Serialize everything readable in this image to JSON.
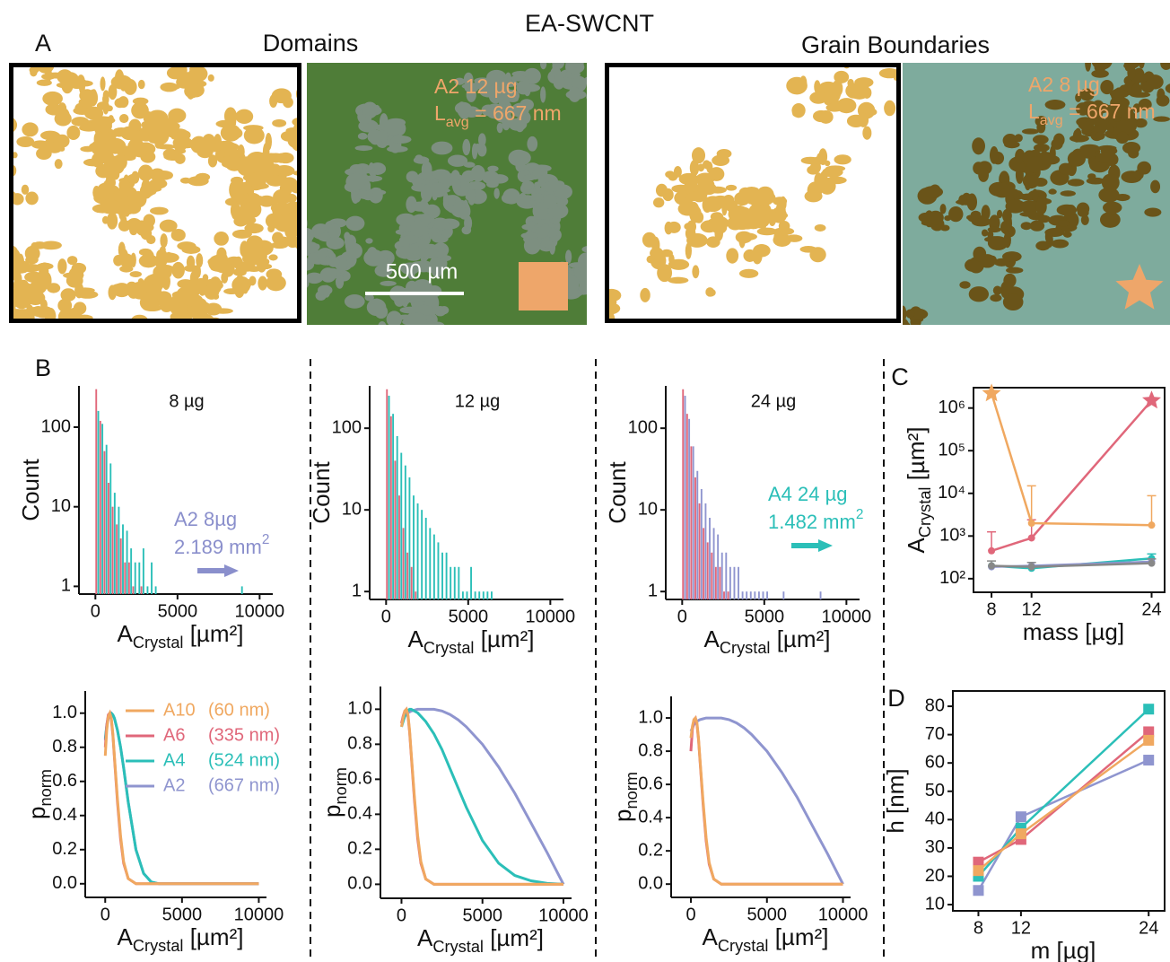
{
  "figure": {
    "title": "EA-SWCNT",
    "panel_labels": [
      "A",
      "B",
      "C",
      "D"
    ]
  },
  "panel_a": {
    "domains_title": "Domains",
    "boundaries_title": "Grain Boundaries",
    "domains_label": {
      "sample": "A2 12 µg",
      "length": [
        "L",
        "avg",
        " = 667 nm"
      ]
    },
    "boundaries_label": {
      "sample": "A2 8 µg",
      "length": [
        "L",
        "avg",
        " = 667 nm"
      ]
    },
    "scale_bar": "500 µm"
  },
  "chart_data": [
    {
      "type": "histogram",
      "title": "8 µg",
      "x_label": [
        "A",
        "Crystal",
        " [µm²]"
      ],
      "y_label": "Count",
      "log_y": true,
      "xlim": [
        -1000,
        10800
      ],
      "xticks": [
        0,
        5000,
        10000
      ],
      "ylim": [
        0.8,
        330
      ],
      "yticks": [
        1,
        10,
        100
      ],
      "bins": [
        0,
        250,
        500,
        750,
        1000,
        1250,
        1500,
        1750,
        2000,
        2250,
        2500,
        2750,
        3000,
        3250,
        3500,
        3750,
        4000,
        4250,
        4500,
        4750,
        5000,
        5250,
        5500,
        5750,
        6000,
        6250,
        6500,
        6750,
        7000,
        7250,
        7500,
        7750,
        8000,
        8250,
        8500,
        8750,
        9000
      ],
      "series": [
        {
          "color": "#e0677a",
          "values": [
            300,
            120,
            50,
            20,
            10,
            6,
            4,
            2,
            2,
            1,
            0,
            1,
            0,
            0,
            0,
            0,
            0,
            0,
            0,
            0,
            0,
            0,
            0,
            0,
            0,
            0,
            0,
            0,
            0,
            0,
            0,
            0,
            0,
            0,
            0,
            0
          ]
        },
        {
          "color": "#2bbfb8",
          "values": [
            160,
            110,
            60,
            35,
            15,
            10,
            6,
            5,
            3,
            2,
            2,
            3,
            1,
            2,
            1,
            0,
            0,
            0,
            0,
            0,
            0,
            0,
            0,
            0,
            0,
            0,
            0,
            0,
            0,
            0,
            0,
            0,
            0,
            0,
            0,
            1
          ]
        }
      ],
      "annotations": [
        {
          "lines": [
            [
              "A2 8µg"
            ],
            [
              "2.189 mm",
              "2"
            ]
          ],
          "color": "#8a8fcc",
          "arrow": true
        }
      ]
    },
    {
      "type": "histogram",
      "title": "12 µg",
      "x_label": [
        "A",
        "Crystal",
        " [µm²]"
      ],
      "y_label": "Count",
      "log_y": true,
      "xlim": [
        -1000,
        10800
      ],
      "xticks": [
        0,
        5000,
        10000
      ],
      "ylim": [
        0.8,
        330
      ],
      "yticks": [
        1,
        10,
        100
      ],
      "bins": [
        0,
        250,
        500,
        750,
        1000,
        1250,
        1500,
        1750,
        2000,
        2250,
        2500,
        2750,
        3000,
        3250,
        3500,
        3750,
        4000,
        4250,
        4500,
        4750,
        5000,
        5250,
        5500,
        5750,
        6000,
        6250,
        6500,
        6750,
        7000,
        7250,
        7500,
        7750,
        8000,
        8250,
        8500,
        8750,
        9000
      ],
      "series": [
        {
          "color": "#e0677a",
          "values": [
            300,
            140,
            40,
            15,
            6,
            3,
            2,
            1,
            0,
            0,
            0,
            0,
            0,
            0,
            0,
            0,
            0,
            0,
            0,
            0,
            0,
            0,
            0,
            0,
            0,
            0,
            0,
            0,
            0,
            0,
            0,
            0,
            0,
            0,
            0,
            0
          ]
        },
        {
          "color": "#2bbfb8",
          "values": [
            250,
            150,
            80,
            50,
            35,
            25,
            15,
            12,
            10,
            8,
            6,
            5,
            4,
            3,
            3,
            2,
            2,
            2,
            1,
            1,
            2,
            1,
            1,
            1,
            1,
            1,
            0,
            0,
            0,
            0,
            0,
            0,
            0,
            0,
            0,
            0
          ]
        }
      ]
    },
    {
      "type": "histogram",
      "title": "24 µg",
      "x_label": [
        "A",
        "Crystal",
        " [µm²]"
      ],
      "y_label": "Count",
      "log_y": true,
      "xlim": [
        -1000,
        10800
      ],
      "xticks": [
        0,
        5000,
        10000
      ],
      "ylim": [
        0.8,
        330
      ],
      "yticks": [
        1,
        10,
        100
      ],
      "bins": [
        0,
        250,
        500,
        750,
        1000,
        1250,
        1500,
        1750,
        2000,
        2250,
        2500,
        2750,
        3000,
        3250,
        3500,
        3750,
        4000,
        4250,
        4500,
        4750,
        5000,
        5250,
        5500,
        5750,
        6000,
        6250,
        6500,
        6750,
        7000,
        7250,
        7500,
        7750,
        8000,
        8250,
        8500,
        8750,
        9000
      ],
      "series": [
        {
          "color": "#e0677a",
          "values": [
            300,
            150,
            60,
            25,
            12,
            6,
            4,
            3,
            2,
            2,
            1,
            1,
            0,
            0,
            0,
            0,
            0,
            0,
            0,
            0,
            0,
            0,
            0,
            0,
            0,
            0,
            0,
            0,
            0,
            0,
            0,
            0,
            0,
            0,
            0,
            0
          ]
        },
        {
          "color": "#8f95cf",
          "values": [
            250,
            130,
            60,
            30,
            18,
            12,
            8,
            6,
            5,
            3,
            3,
            2,
            2,
            2,
            1,
            1,
            1,
            1,
            1,
            1,
            1,
            0,
            0,
            0,
            1,
            0,
            0,
            0,
            0,
            0,
            0,
            0,
            0,
            1,
            0,
            0
          ]
        }
      ],
      "annotations": [
        {
          "lines": [
            [
              "A4 24 µg"
            ],
            [
              "1.482 mm",
              "2"
            ]
          ],
          "color": "#2bbfb8",
          "arrow": true
        }
      ]
    },
    {
      "type": "line",
      "x_label": [
        "A",
        "Crystal",
        " [µm²]"
      ],
      "y_label": [
        "p",
        "norm"
      ],
      "xlim": [
        -1300,
        10500
      ],
      "xticks": [
        0,
        5000,
        10000
      ],
      "ylim": [
        -0.08,
        1.13
      ],
      "yticks": [
        {
          "value": 0,
          "label": "0.0"
        },
        0.2,
        0.4,
        0.6,
        0.8,
        {
          "value": 1,
          "label": "1.0"
        }
      ],
      "x": [
        0,
        100,
        200,
        300,
        400,
        500,
        600,
        800,
        1000,
        1200,
        1500,
        2000,
        2500,
        3000,
        3500,
        4000,
        5000,
        6000,
        7000,
        8000,
        9000,
        10000
      ],
      "legend": "upper right",
      "series": [
        {
          "name": "A10",
          "size": "(60 nm)",
          "color": "#f0a860",
          "values": [
            0.75,
            0.9,
            0.98,
            1.0,
            0.97,
            0.88,
            0.75,
            0.5,
            0.28,
            0.13,
            0.03,
            0,
            0,
            0,
            0,
            0,
            0,
            0,
            0,
            0,
            0,
            0
          ]
        },
        {
          "name": "A6",
          "size": "(335 nm)",
          "color": "#e0677a",
          "values": [
            0.8,
            0.93,
            0.99,
            1.0,
            0.96,
            0.87,
            0.74,
            0.48,
            0.26,
            0.12,
            0.03,
            0,
            0,
            0,
            0,
            0,
            0,
            0,
            0,
            0,
            0,
            0
          ]
        },
        {
          "name": "A4",
          "size": "(524 nm)",
          "color": "#2bbfb8",
          "values": [
            0.85,
            0.93,
            0.98,
            1.0,
            1.0,
            0.99,
            0.97,
            0.9,
            0.8,
            0.68,
            0.48,
            0.2,
            0.06,
            0.01,
            0,
            0,
            0,
            0,
            0,
            0,
            0,
            0
          ]
        },
        {
          "name": "A2",
          "size": "(667 nm)",
          "color": "#8f95cf",
          "values": [
            0.84,
            0.92,
            0.97,
            0.99,
            1.0,
            0.99,
            0.97,
            0.9,
            0.8,
            0.68,
            0.48,
            0.2,
            0.06,
            0.01,
            0,
            0,
            0,
            0,
            0,
            0,
            0,
            0
          ]
        }
      ]
    },
    {
      "type": "line",
      "x_label": [
        "A",
        "Crystal",
        " [µm²]"
      ],
      "y_label": [
        "p",
        "norm"
      ],
      "xlim": [
        -1300,
        10500
      ],
      "xticks": [
        0,
        5000,
        10000
      ],
      "ylim": [
        -0.08,
        1.13
      ],
      "yticks": [
        {
          "value": 0,
          "label": "0.0"
        },
        0.2,
        0.4,
        0.6,
        0.8,
        {
          "value": 1,
          "label": "1.0"
        }
      ],
      "x": [
        0,
        100,
        200,
        300,
        400,
        500,
        600,
        800,
        1000,
        1200,
        1500,
        2000,
        2500,
        3000,
        3500,
        4000,
        5000,
        6000,
        7000,
        8000,
        9000,
        10000
      ],
      "series": [
        {
          "color": "#f0a860",
          "values": [
            0.9,
            0.95,
            0.99,
            1.0,
            0.97,
            0.88,
            0.75,
            0.5,
            0.28,
            0.13,
            0.03,
            0,
            0,
            0,
            0,
            0,
            0,
            0,
            0,
            0,
            0,
            0
          ]
        },
        {
          "color": "#e0677a",
          "values": [
            0.92,
            0.96,
            0.99,
            1.0,
            0.96,
            0.87,
            0.74,
            0.48,
            0.26,
            0.12,
            0.03,
            0,
            0,
            0,
            0,
            0,
            0,
            0,
            0,
            0,
            0,
            0
          ]
        },
        {
          "color": "#2bbfb8",
          "values": [
            0.9,
            0.93,
            0.96,
            0.98,
            0.99,
            1.0,
            1.0,
            0.99,
            0.98,
            0.96,
            0.93,
            0.86,
            0.77,
            0.66,
            0.55,
            0.44,
            0.25,
            0.12,
            0.05,
            0.02,
            0.005,
            0
          ]
        },
        {
          "color": "#8f95cf",
          "values": [
            0.92,
            0.94,
            0.96,
            0.97,
            0.98,
            0.985,
            0.99,
            0.995,
            1.0,
            1.0,
            1.0,
            1.0,
            0.99,
            0.97,
            0.94,
            0.9,
            0.8,
            0.67,
            0.52,
            0.35,
            0.18,
            0
          ]
        }
      ]
    },
    {
      "type": "line",
      "x_label": [
        "A",
        "Crystal",
        " [µm²]"
      ],
      "y_label": [
        "p",
        "norm"
      ],
      "xlim": [
        -1300,
        10500
      ],
      "xticks": [
        0,
        5000,
        10000
      ],
      "ylim": [
        -0.08,
        1.13
      ],
      "yticks": [
        {
          "value": 0,
          "label": "0.0"
        },
        0.2,
        0.4,
        0.6,
        0.8,
        {
          "value": 1,
          "label": "1.0"
        }
      ],
      "x": [
        0,
        100,
        200,
        300,
        400,
        500,
        600,
        800,
        1000,
        1200,
        1500,
        2000,
        2500,
        3000,
        3500,
        4000,
        5000,
        6000,
        7000,
        8000,
        9000,
        10000
      ],
      "series": [
        {
          "color": "#f0a860",
          "values": [
            0.88,
            0.95,
            0.99,
            1.0,
            0.97,
            0.88,
            0.75,
            0.5,
            0.28,
            0.13,
            0.03,
            0,
            0,
            0,
            0,
            0,
            0,
            0,
            0,
            0,
            0,
            0
          ]
        },
        {
          "color": "#e0677a",
          "values": [
            0.8,
            0.93,
            0.99,
            1.0,
            0.96,
            0.87,
            0.74,
            0.48,
            0.26,
            0.12,
            0.03,
            0,
            0,
            0,
            0,
            0,
            0,
            0,
            0,
            0,
            0,
            0
          ]
        },
        {
          "color": "#8f95cf",
          "values": [
            0.92,
            0.94,
            0.96,
            0.97,
            0.98,
            0.985,
            0.99,
            0.995,
            1.0,
            1.0,
            1.0,
            1.0,
            0.99,
            0.97,
            0.94,
            0.9,
            0.8,
            0.67,
            0.52,
            0.35,
            0.18,
            0
          ]
        }
      ]
    },
    {
      "type": "line",
      "log_y": true,
      "frame": true,
      "x_label": "mass [µg]",
      "y_label": [
        "A",
        "Crystal",
        " [µm²]"
      ],
      "xlim": [
        6.2,
        25.3
      ],
      "xticks": [
        8,
        12,
        24
      ],
      "ylim": [
        48,
        3000000
      ],
      "yticks": [
        {
          "value": 100,
          "label": "10²"
        },
        {
          "value": 1000,
          "label": "10³"
        },
        {
          "value": 10000,
          "label": "10⁴"
        },
        {
          "value": 100000,
          "label": "10⁵"
        },
        {
          "value": 1000000,
          "label": "10⁶"
        }
      ],
      "x": [
        8,
        12,
        24
      ],
      "series": [
        {
          "color": "#f0a860",
          "values": [
            2200000,
            2000,
            1800
          ],
          "errors": [
            null,
            13000,
            7000
          ],
          "markers": [
            "star",
            "circle",
            "circle"
          ]
        },
        {
          "color": "#e0677a",
          "values": [
            450,
            900,
            1500000
          ],
          "errors": [
            800,
            1500,
            null
          ],
          "markers": [
            "circle",
            "circle",
            "star"
          ]
        },
        {
          "color": "#888888",
          "values": [
            200,
            190,
            230
          ],
          "errors": [
            60,
            50,
            60
          ]
        },
        {
          "color": "#8f95cf",
          "values": [
            190,
            200,
            250
          ]
        },
        {
          "color": "#2bbfb8",
          "values": [
            200,
            175,
            300
          ],
          "errors": [
            null,
            null,
            80
          ]
        }
      ]
    },
    {
      "type": "line",
      "frame": true,
      "marker": "square",
      "x_label": "m [µg]",
      "y_label": "h [nm]",
      "xlim": [
        5.6,
        25.5
      ],
      "xticks": [
        8,
        12,
        24
      ],
      "ylim": [
        7.8,
        85.4
      ],
      "yticks": [
        10,
        20,
        30,
        40,
        50,
        60,
        70,
        80
      ],
      "x": [
        8,
        12,
        24
      ],
      "series": [
        {
          "color": "#f0a860",
          "values": [
            22,
            35,
            68
          ]
        },
        {
          "color": "#e0677a",
          "values": [
            25,
            33,
            71
          ]
        },
        {
          "color": "#2bbfb8",
          "values": [
            20,
            37,
            79
          ]
        },
        {
          "color": "#8f95cf",
          "values": [
            15,
            41,
            61
          ]
        }
      ]
    }
  ]
}
